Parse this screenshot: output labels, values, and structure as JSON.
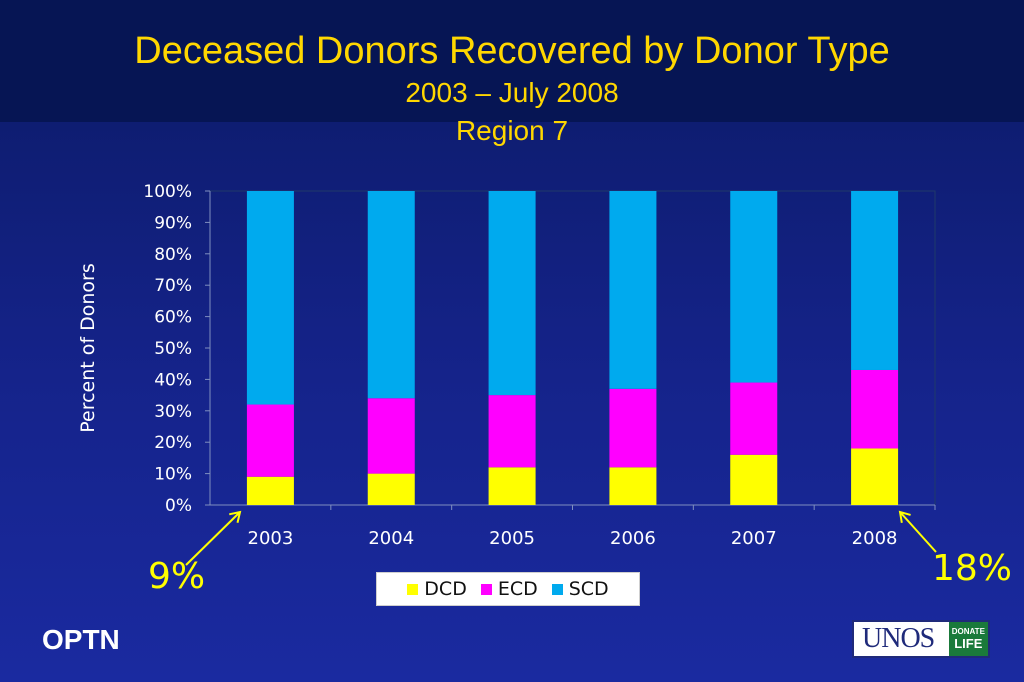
{
  "slide": {
    "title": "Deceased Donors Recovered by Donor Type",
    "subtitle_1": "2003 – July 2008",
    "subtitle_2": "Region 7",
    "annotation_left": "9%",
    "annotation_right": "18%",
    "brand_text": "OPTN",
    "logo_text": "UNOS",
    "logo_badge_top": "DONATE",
    "logo_badge_bottom": "LIFE"
  },
  "colors": {
    "DCD": "#ffff00",
    "ECD": "#ff00ff",
    "SCD": "#00aaee"
  },
  "chart_data": {
    "type": "bar",
    "stacked": true,
    "categories": [
      "2003",
      "2004",
      "2005",
      "2006",
      "2007",
      "2008"
    ],
    "series": [
      {
        "name": "DCD",
        "values": [
          9,
          10,
          12,
          12,
          16,
          18
        ]
      },
      {
        "name": "ECD",
        "values": [
          23,
          24,
          23,
          25,
          23,
          25
        ]
      },
      {
        "name": "SCD",
        "values": [
          68,
          66,
          65,
          63,
          61,
          57
        ]
      }
    ],
    "ylabel": "Percent of Donors",
    "xlabel": "",
    "ylim": [
      0,
      100
    ],
    "yticks": [
      "0%",
      "10%",
      "20%",
      "30%",
      "40%",
      "50%",
      "60%",
      "70%",
      "80%",
      "90%",
      "100%"
    ],
    "grid": false,
    "legend_position": "bottom"
  }
}
